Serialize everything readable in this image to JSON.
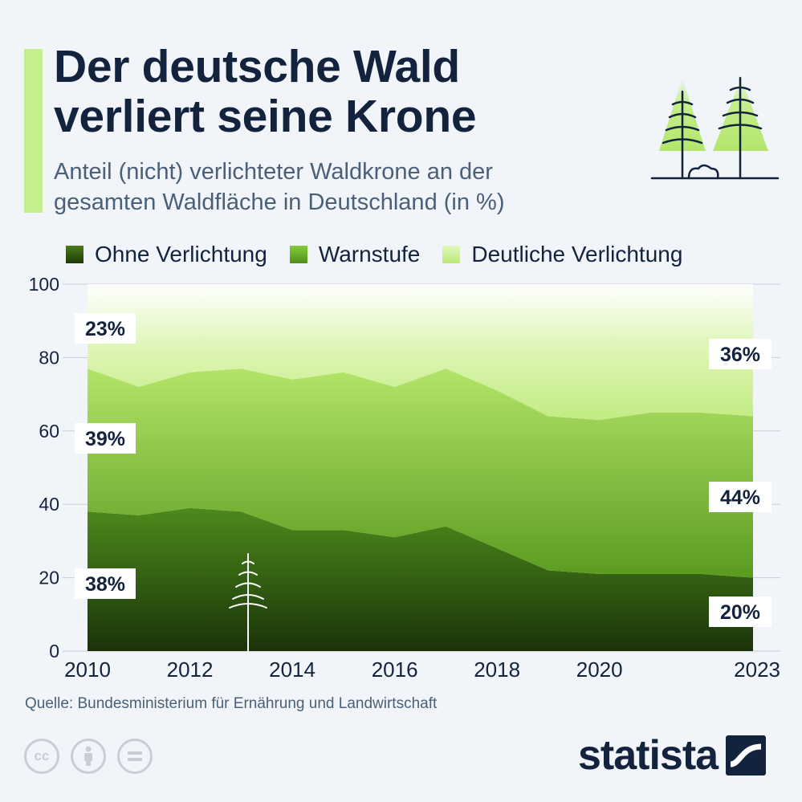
{
  "header": {
    "title": "Der deutsche Wald\nverliert seine Krone",
    "subtitle": "Anteil (nicht) verlichteter Waldkrone an der\ngesamten Waldfläche in Deutschland (in %)"
  },
  "colors": {
    "accent": "#c6ee8c",
    "title_text": "#13233d",
    "ohne_verlichtung": "#2f5a0c",
    "warnstufe": "#5ea021",
    "deutliche_verlichtung": "#cdf294",
    "grid": "#c9ced6"
  },
  "footer": {
    "source": "Quelle: Bundesministerium für Ernährung und Landwirtschaft",
    "brand": "statista"
  },
  "chart_data": {
    "type": "area",
    "stacked": true,
    "x": [
      2010,
      2011,
      2012,
      2013,
      2014,
      2015,
      2016,
      2017,
      2018,
      2019,
      2020,
      2021,
      2022,
      2023
    ],
    "series": [
      {
        "name": "Ohne Verlichtung",
        "values": [
          38,
          37,
          39,
          38,
          33,
          33,
          31,
          34,
          28,
          22,
          21,
          21,
          21,
          20
        ]
      },
      {
        "name": "Warnstufe",
        "values": [
          39,
          35,
          37,
          39,
          41,
          43,
          41,
          43,
          43,
          42,
          42,
          44,
          44,
          44
        ]
      },
      {
        "name": "Deutliche Verlichtung",
        "values": [
          23,
          28,
          24,
          23,
          26,
          24,
          28,
          23,
          29,
          36,
          37,
          35,
          35,
          36
        ]
      }
    ],
    "x_tick_labels": [
      "2010",
      "2012",
      "2014",
      "2016",
      "2018",
      "2020",
      "2023"
    ],
    "x_tick_values": [
      2010,
      2012,
      2014,
      2016,
      2018,
      2020,
      2023
    ],
    "y_ticks": [
      0,
      20,
      40,
      60,
      80,
      100
    ],
    "ylim": [
      0,
      100
    ],
    "grid": true,
    "legend_position": "top",
    "annotations": {
      "start": [
        "38%",
        "39%",
        "23%"
      ],
      "end": [
        "20%",
        "44%",
        "36%"
      ]
    }
  }
}
